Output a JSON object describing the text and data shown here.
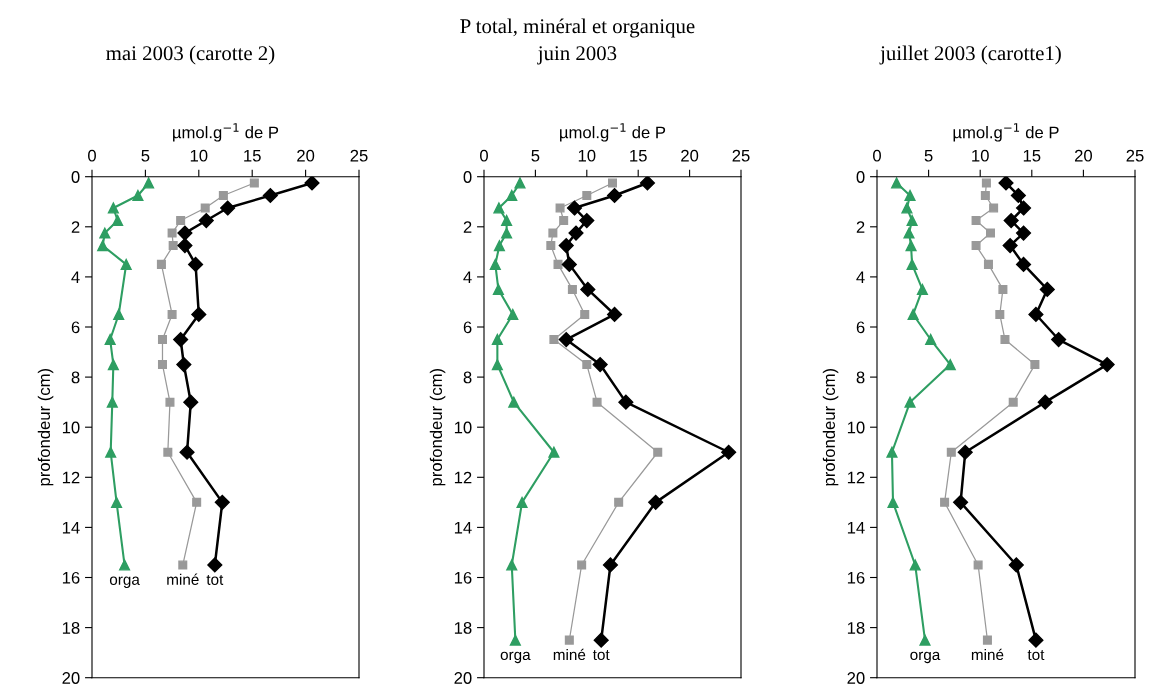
{
  "chart_data": [
    {
      "type": "line",
      "title": "mai 2003 (carotte 2)",
      "xlabel": "µmol.g$^{−1}$ de P",
      "ylabel": "profondeur (cm)",
      "xlim": [
        0,
        25
      ],
      "xticks": [
        0,
        5,
        10,
        15,
        20,
        25
      ],
      "ylim": [
        20,
        0
      ],
      "yticks": [
        0,
        2,
        4,
        6,
        8,
        10,
        12,
        14,
        16,
        18,
        20
      ],
      "grid": false,
      "legend": false,
      "series": [
        {
          "name": "orga",
          "color": "#2e9e62",
          "marker": "triangle",
          "x": [
            5.3,
            4.3,
            2.0,
            2.4,
            1.2,
            1.0,
            3.2,
            2.5,
            1.7,
            2.0,
            1.9,
            1.75,
            2.3,
            3.05
          ],
          "values": [
            0.25,
            0.75,
            1.25,
            1.75,
            2.25,
            2.75,
            3.5,
            5.5,
            6.5,
            7.5,
            9,
            11,
            13,
            15.5
          ]
        },
        {
          "name": "miné",
          "color": "#999999",
          "marker": "square",
          "x": [
            15.2,
            12.3,
            10.6,
            8.3,
            7.5,
            7.6,
            6.5,
            7.5,
            6.6,
            6.6,
            7.3,
            7.1,
            9.8,
            8.5
          ],
          "values": [
            0.25,
            0.75,
            1.25,
            1.75,
            2.25,
            2.75,
            3.5,
            5.5,
            6.5,
            7.5,
            9,
            11,
            13,
            15.5
          ]
        },
        {
          "name": "tot",
          "color": "#000000",
          "marker": "diamond",
          "x": [
            20.6,
            16.7,
            12.7,
            10.7,
            8.7,
            8.7,
            9.7,
            10.0,
            8.3,
            8.6,
            9.25,
            8.9,
            12.2,
            11.5
          ],
          "values": [
            0.25,
            0.75,
            1.25,
            1.75,
            2.25,
            2.75,
            3.5,
            5.5,
            6.5,
            7.5,
            9,
            11,
            13,
            15.5
          ]
        }
      ]
    },
    {
      "type": "line",
      "title": "P total, minéral et organique",
      "subtitle": "juin 2003",
      "xlabel": "µmol.g$^{−1}$ de P",
      "ylabel": "profondeur (cm)",
      "xlim": [
        0,
        25
      ],
      "xticks": [
        0,
        5,
        10,
        15,
        20,
        25
      ],
      "ylim": [
        20,
        0
      ],
      "yticks": [
        0,
        2,
        4,
        6,
        8,
        10,
        12,
        14,
        16,
        18,
        20
      ],
      "grid": false,
      "legend": false,
      "series": [
        {
          "name": "orga",
          "color": "#2e9e62",
          "marker": "triangle",
          "x": [
            3.5,
            2.7,
            1.45,
            2.2,
            2.2,
            1.5,
            1.1,
            1.4,
            2.8,
            1.3,
            1.3,
            2.9,
            6.8,
            3.7,
            2.7,
            3.05
          ],
          "values": [
            0.25,
            0.75,
            1.25,
            1.75,
            2.25,
            2.75,
            3.5,
            4.5,
            5.5,
            6.5,
            7.5,
            9,
            11,
            13,
            15.5,
            18.5
          ]
        },
        {
          "name": "miné",
          "color": "#999999",
          "marker": "square",
          "x": [
            12.5,
            10.0,
            7.4,
            7.75,
            6.7,
            6.5,
            7.2,
            8.6,
            9.8,
            6.8,
            10.0,
            11.0,
            16.9,
            13.1,
            9.5,
            8.3
          ],
          "values": [
            0.25,
            0.75,
            1.25,
            1.75,
            2.25,
            2.75,
            3.5,
            4.5,
            5.5,
            6.5,
            7.5,
            9,
            11,
            13,
            15.5,
            18.5
          ]
        },
        {
          "name": "tot",
          "color": "#000000",
          "marker": "diamond",
          "x": [
            15.9,
            12.7,
            8.8,
            10.0,
            8.95,
            8.0,
            8.3,
            10.1,
            12.7,
            8.0,
            11.3,
            13.8,
            23.8,
            16.7,
            12.3,
            11.4
          ],
          "values": [
            0.25,
            0.75,
            1.25,
            1.75,
            2.25,
            2.75,
            3.5,
            4.5,
            5.5,
            6.5,
            7.5,
            9,
            11,
            13,
            15.5,
            18.5
          ]
        }
      ]
    },
    {
      "type": "line",
      "title": "juillet 2003 (carotte1)",
      "xlabel": "µmol.g$^{−1}$ de P",
      "ylabel": "profondeur (cm)",
      "xlim": [
        0,
        25
      ],
      "xticks": [
        0,
        5,
        10,
        15,
        20,
        25
      ],
      "ylim": [
        20,
        0
      ],
      "yticks": [
        0,
        2,
        4,
        6,
        8,
        10,
        12,
        14,
        16,
        18,
        20
      ],
      "grid": false,
      "legend": false,
      "series": [
        {
          "name": "orga",
          "color": "#2e9e62",
          "marker": "triangle",
          "x": [
            1.9,
            3.2,
            2.9,
            3.4,
            3.1,
            3.3,
            3.4,
            4.4,
            3.5,
            5.2,
            7.1,
            3.2,
            1.45,
            1.55,
            3.7,
            4.65
          ],
          "values": [
            0.25,
            0.75,
            1.25,
            1.75,
            2.25,
            2.75,
            3.5,
            4.5,
            5.5,
            6.5,
            7.5,
            9,
            11,
            13,
            15.5,
            18.5
          ]
        },
        {
          "name": "miné",
          "color": "#999999",
          "marker": "square",
          "x": [
            10.6,
            10.5,
            11.3,
            9.6,
            11.0,
            9.6,
            10.8,
            12.2,
            11.9,
            12.4,
            15.3,
            13.2,
            7.2,
            6.55,
            9.8,
            10.7
          ],
          "values": [
            0.25,
            0.75,
            1.25,
            1.75,
            2.25,
            2.75,
            3.5,
            4.5,
            5.5,
            6.5,
            7.5,
            9,
            11,
            13,
            15.5,
            18.5
          ]
        },
        {
          "name": "tot",
          "color": "#000000",
          "marker": "diamond",
          "x": [
            12.5,
            13.7,
            14.2,
            13.0,
            14.2,
            12.9,
            14.2,
            16.5,
            15.4,
            17.6,
            22.3,
            16.3,
            8.55,
            8.1,
            13.5,
            15.4
          ],
          "values": [
            0.25,
            0.75,
            1.25,
            1.75,
            2.25,
            2.75,
            3.5,
            4.5,
            5.5,
            6.5,
            7.5,
            9,
            11,
            13,
            15.5,
            18.5
          ]
        }
      ]
    }
  ]
}
